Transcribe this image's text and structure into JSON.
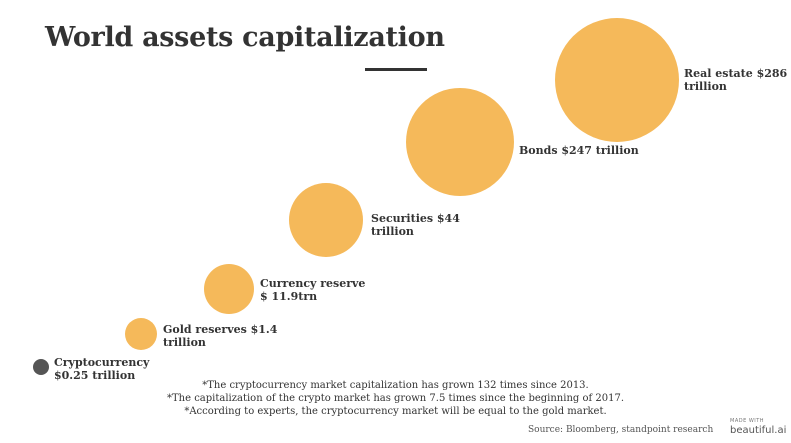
{
  "chart_data": {
    "type": "bubble",
    "title": "World assets capitalization",
    "unit": "trillion",
    "bubble_color": "#F5B95A",
    "crypto_color": "#555555",
    "series": [
      {
        "name": "Cryptocurrency",
        "value": 0.25,
        "label": "Cryptocurrency\n$0.25 trillion"
      },
      {
        "name": "Gold reserves",
        "value": 1.4,
        "label": "Gold reserves $1.4\ntrillion"
      },
      {
        "name": "Currency reserve",
        "value": 11.9,
        "label": "Currency reserve\n$ 11.9trn"
      },
      {
        "name": "Securities",
        "value": 44,
        "label": "Securities $44\ntrillion"
      },
      {
        "name": "Bonds",
        "value": 247,
        "label": "Bonds $247 trillion"
      },
      {
        "name": "Real estate",
        "value": 286,
        "label": "Real estate $286\ntrillion"
      }
    ]
  },
  "footnotes": [
    "*The cryptocurrency market capitalization has grown 132 times since 2013.",
    "*The capitalization of the crypto market has grown 7.5 times since the beginning of 2017.",
    "*According to experts, the cryptocurrency market will be equal to the gold market."
  ],
  "source": "Source: Bloomberg, standpoint research",
  "brand": {
    "made_with": "MADE WITH",
    "name": "beautiful.ai"
  }
}
